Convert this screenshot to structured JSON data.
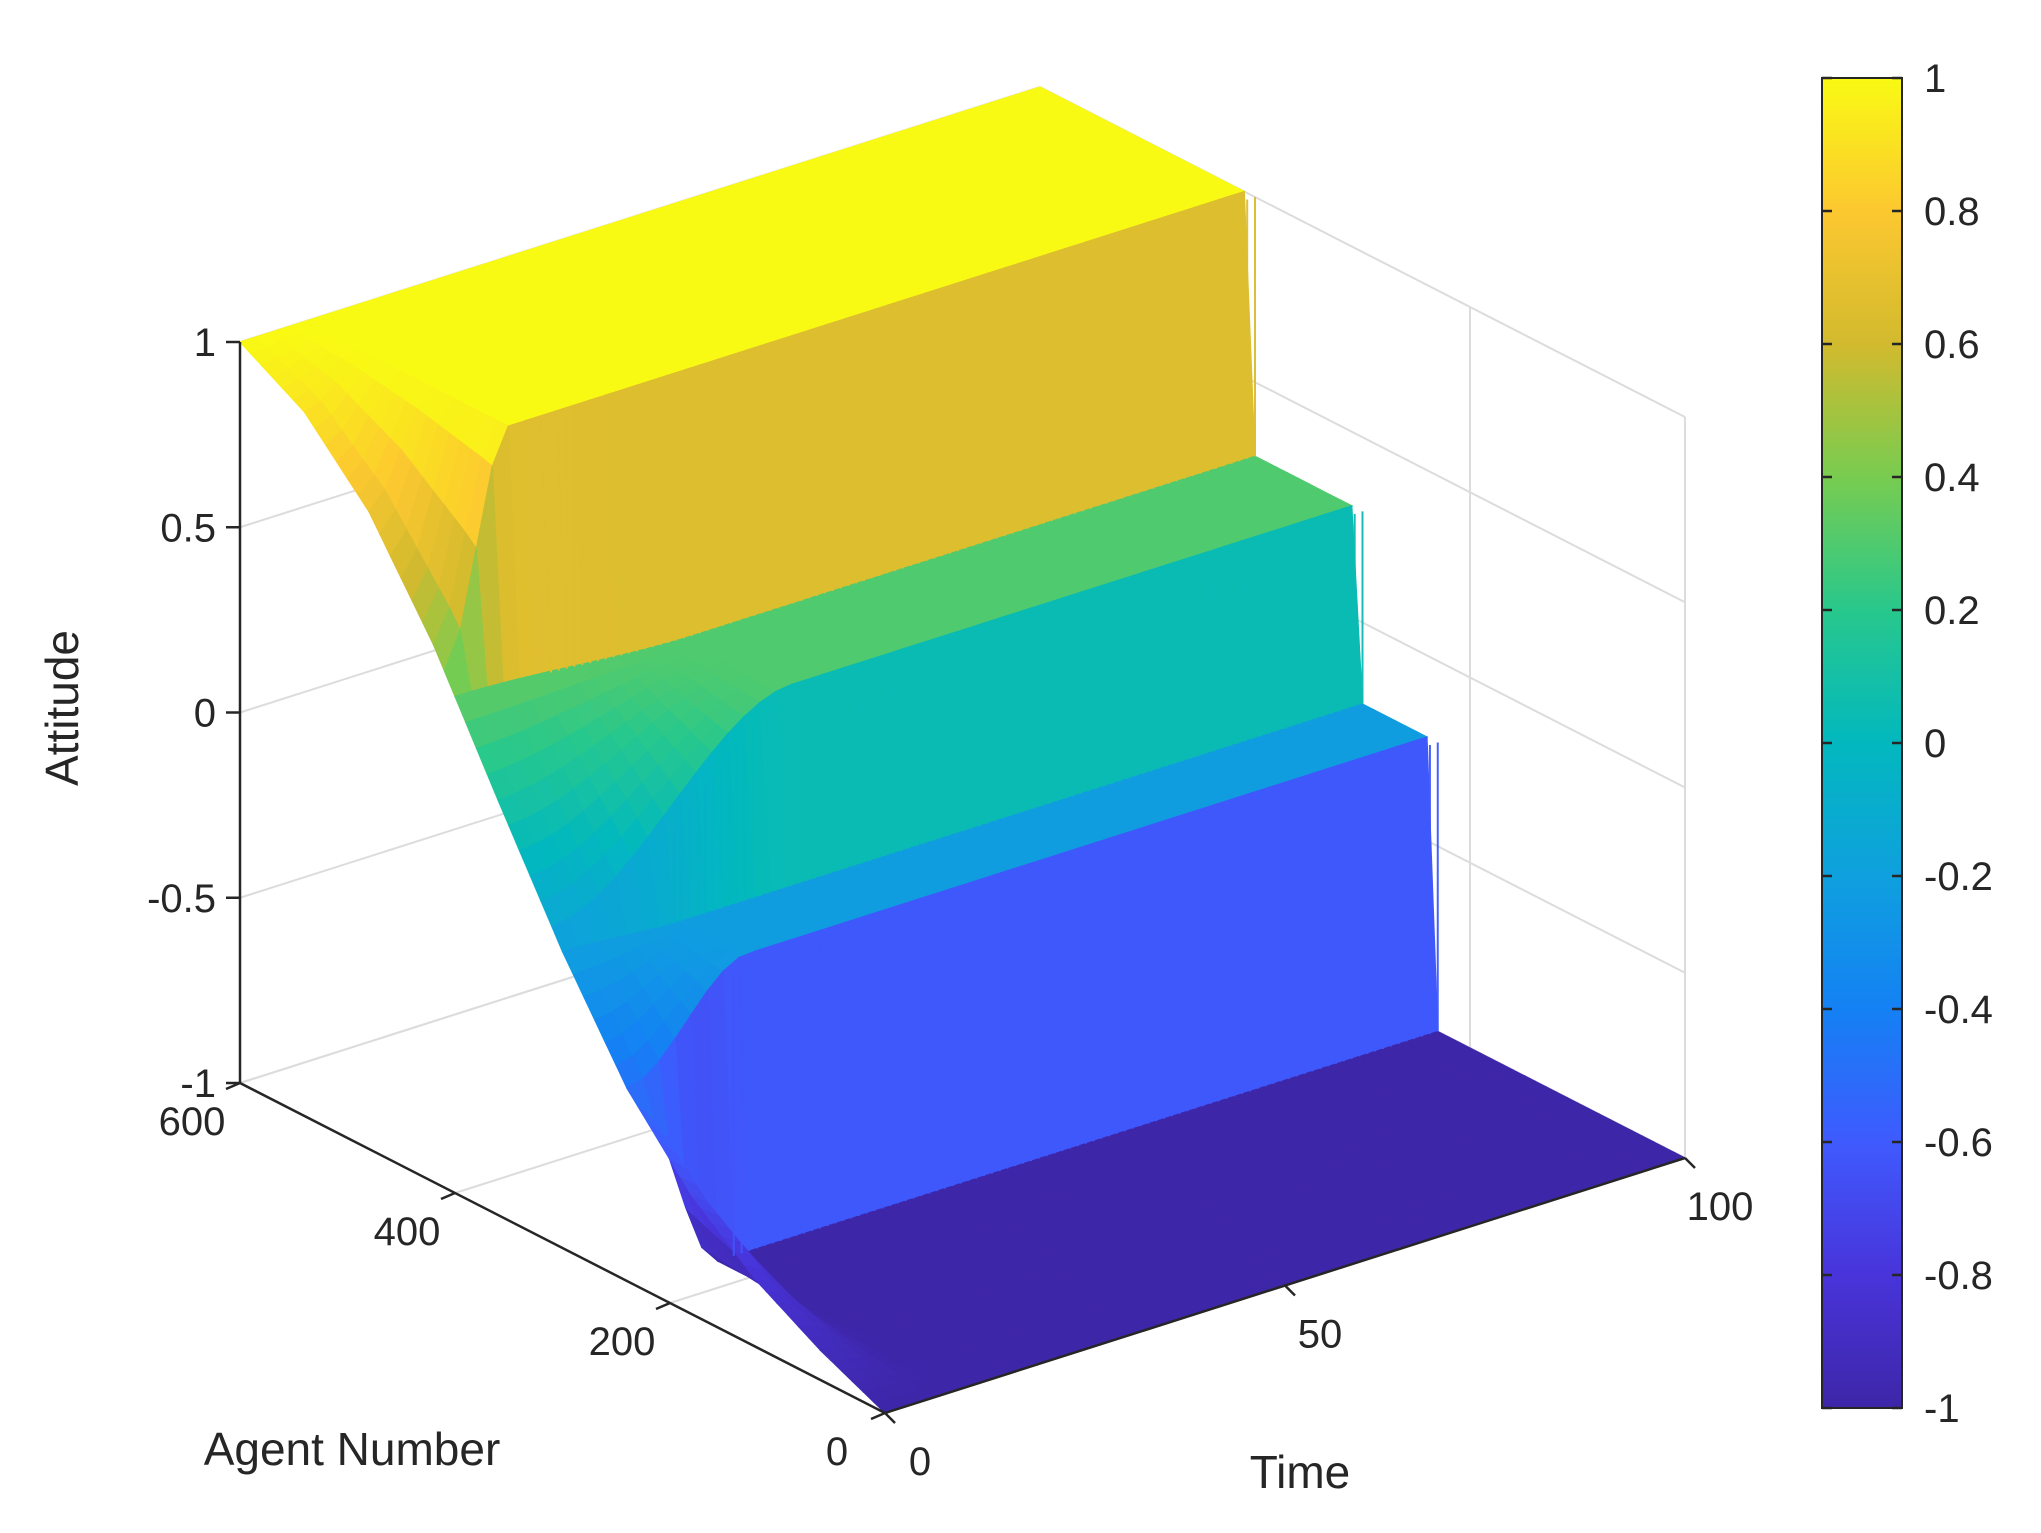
{
  "chart_data": {
    "type": "surface",
    "title": "",
    "xlabel": "Time",
    "ylabel": "Agent Number",
    "zlabel": "Attitude",
    "xlim": [
      0,
      100
    ],
    "ylim": [
      0,
      600
    ],
    "zlim": [
      -1,
      1
    ],
    "x_ticks": [
      "0",
      "50",
      "100"
    ],
    "y_ticks": [
      "0",
      "200",
      "400",
      "600"
    ],
    "z_ticks": [
      "-1",
      "-0.5",
      "0",
      "0.5",
      "1"
    ],
    "grid": true,
    "colormap": "parula",
    "colorbar": {
      "position": "right",
      "range": [
        -1,
        1
      ],
      "ticks": [
        "-1",
        "-0.8",
        "-0.6",
        "-0.4",
        "-0.2",
        "0",
        "0.2",
        "0.4",
        "0.6",
        "0.8",
        "1"
      ]
    },
    "initial_attitude_profile": {
      "agent": [
        0,
        60,
        120,
        180,
        240,
        300,
        360,
        420,
        480,
        540,
        600
      ],
      "attitude": [
        -1.0,
        -0.92,
        -0.82,
        -0.68,
        -0.48,
        -0.2,
        0.12,
        0.45,
        0.72,
        0.9,
        1.0
      ]
    },
    "clusters": [
      {
        "agents": [
          0,
          230
        ],
        "final_attitude": -1.0,
        "converge_time": 10
      },
      {
        "agents": [
          230,
          300
        ],
        "final_attitude": -0.22,
        "converge_time": 15
      },
      {
        "agents": [
          300,
          400
        ],
        "final_attitude": 0.3,
        "converge_time": 30
      },
      {
        "agents": [
          400,
          600
        ],
        "final_attitude": 1.0,
        "converge_time": 8
      }
    ]
  }
}
